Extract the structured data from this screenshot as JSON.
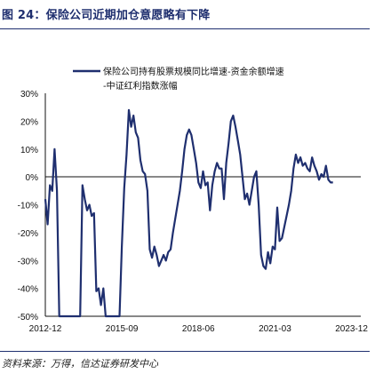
{
  "header": {
    "title": "图 24：保险公司近期加仓意愿略有下降"
  },
  "footer": {
    "source": "资料来源：万得，信达证券研发中心"
  },
  "chart_data": {
    "type": "line",
    "title": "",
    "xlabel": "",
    "ylabel": "",
    "ylim": [
      -50,
      30
    ],
    "yticks": [
      "30%",
      "20%",
      "10%",
      "0%",
      "-10%",
      "-20%",
      "-30%",
      "-40%",
      "-50%"
    ],
    "xticks": [
      "2012-12",
      "2015-09",
      "2018-06",
      "2021-03",
      "2023-12"
    ],
    "legend_position": "top-center",
    "series": [
      {
        "name": "保险公司持有股票规模同比增速-资金余额增速-中证红利指数涨幅",
        "color": "#1f2f6f",
        "points": [
          [
            "2012-12",
            -8
          ],
          [
            "2013-01",
            -17
          ],
          [
            "2013-02",
            -3
          ],
          [
            "2013-03",
            -5
          ],
          [
            "2013-04",
            10
          ],
          [
            "2013-05",
            -5
          ],
          [
            "2013-06",
            -50
          ],
          [
            "2014-03",
            -50
          ],
          [
            "2014-04",
            -3
          ],
          [
            "2014-05",
            -8
          ],
          [
            "2014-06",
            -12
          ],
          [
            "2014-07",
            -10
          ],
          [
            "2014-08",
            -14
          ],
          [
            "2014-09",
            -13
          ],
          [
            "2014-10",
            -41
          ],
          [
            "2014-11",
            -40
          ],
          [
            "2014-12",
            -46
          ],
          [
            "2015-01",
            -40
          ],
          [
            "2015-02",
            -50
          ],
          [
            "2015-08",
            -50
          ],
          [
            "2015-09",
            -25
          ],
          [
            "2015-10",
            -4
          ],
          [
            "2015-11",
            8
          ],
          [
            "2015-12",
            24
          ],
          [
            "2016-01",
            18
          ],
          [
            "2016-02",
            22
          ],
          [
            "2016-03",
            16
          ],
          [
            "2016-04",
            14
          ],
          [
            "2016-05",
            6
          ],
          [
            "2016-06",
            2
          ],
          [
            "2016-07",
            1
          ],
          [
            "2016-08",
            -5
          ],
          [
            "2016-09",
            -26
          ],
          [
            "2016-10",
            -29
          ],
          [
            "2016-11",
            -25
          ],
          [
            "2016-12",
            -28
          ],
          [
            "2017-01",
            -32
          ],
          [
            "2017-02",
            -30
          ],
          [
            "2017-03",
            -28
          ],
          [
            "2017-04",
            -30
          ],
          [
            "2017-05",
            -27
          ],
          [
            "2017-06",
            -26
          ],
          [
            "2017-07",
            -20
          ],
          [
            "2017-08",
            -15
          ],
          [
            "2017-09",
            -10
          ],
          [
            "2017-10",
            -5
          ],
          [
            "2017-11",
            2
          ],
          [
            "2017-12",
            10
          ],
          [
            "2018-01",
            15
          ],
          [
            "2018-02",
            17
          ],
          [
            "2018-03",
            15
          ],
          [
            "2018-04",
            10
          ],
          [
            "2018-05",
            5
          ],
          [
            "2018-06",
            -2
          ],
          [
            "2018-07",
            -4
          ],
          [
            "2018-08",
            2
          ],
          [
            "2018-09",
            -3
          ],
          [
            "2018-10",
            -2
          ],
          [
            "2018-11",
            -12
          ],
          [
            "2018-12",
            -3
          ],
          [
            "2019-01",
            2
          ],
          [
            "2019-02",
            5
          ],
          [
            "2019-03",
            3
          ],
          [
            "2019-04",
            3
          ],
          [
            "2019-05",
            -8
          ],
          [
            "2019-06",
            5
          ],
          [
            "2019-07",
            12
          ],
          [
            "2019-08",
            20
          ],
          [
            "2019-09",
            22
          ],
          [
            "2019-10",
            18
          ],
          [
            "2019-11",
            13
          ],
          [
            "2019-12",
            8
          ],
          [
            "2020-01",
            0
          ],
          [
            "2020-02",
            -8
          ],
          [
            "2020-03",
            -6
          ],
          [
            "2020-04",
            -10
          ],
          [
            "2020-05",
            -5
          ],
          [
            "2020-06",
            0
          ],
          [
            "2020-07",
            2
          ],
          [
            "2020-08",
            -10
          ],
          [
            "2020-09",
            -28
          ],
          [
            "2020-10",
            -32
          ],
          [
            "2020-11",
            -33
          ],
          [
            "2020-12",
            -27
          ],
          [
            "2021-01",
            -31
          ],
          [
            "2021-02",
            -25
          ],
          [
            "2021-03",
            -26
          ],
          [
            "2021-04",
            -11
          ],
          [
            "2021-05",
            -23
          ],
          [
            "2021-06",
            -22
          ],
          [
            "2021-07",
            -18
          ],
          [
            "2021-08",
            -14
          ],
          [
            "2021-09",
            -10
          ],
          [
            "2021-10",
            -5
          ],
          [
            "2021-11",
            3
          ],
          [
            "2021-12",
            8
          ],
          [
            "2022-01",
            5
          ],
          [
            "2022-02",
            7
          ],
          [
            "2022-03",
            4
          ],
          [
            "2022-04",
            5
          ],
          [
            "2022-05",
            3
          ],
          [
            "2022-06",
            2
          ],
          [
            "2022-07",
            7
          ],
          [
            "2022-08",
            4
          ],
          [
            "2022-09",
            2
          ],
          [
            "2022-10",
            -1
          ],
          [
            "2022-11",
            1
          ],
          [
            "2022-12",
            0
          ],
          [
            "2023-01",
            4
          ],
          [
            "2023-02",
            -1
          ],
          [
            "2023-03",
            -2
          ],
          [
            "2023-04",
            -2
          ]
        ]
      }
    ]
  }
}
